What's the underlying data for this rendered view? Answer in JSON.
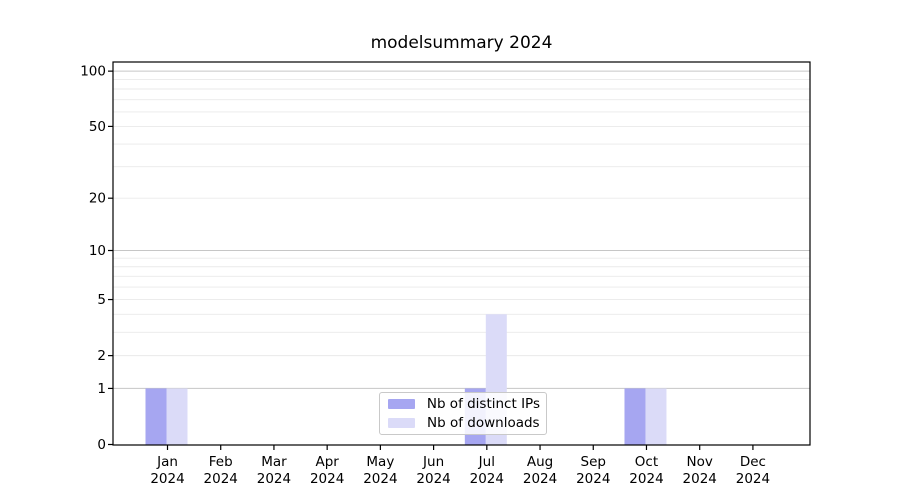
{
  "chart_data": {
    "type": "bar",
    "title": "modelsummary 2024",
    "months": [
      "Jan",
      "Feb",
      "Mar",
      "Apr",
      "May",
      "Jun",
      "Jul",
      "Aug",
      "Sep",
      "Oct",
      "Nov",
      "Dec"
    ],
    "year": "2024",
    "categories": [
      "Jan 2024",
      "Feb 2024",
      "Mar 2024",
      "Apr 2024",
      "May 2024",
      "Jun 2024",
      "Jul 2024",
      "Aug 2024",
      "Sep 2024",
      "Oct 2024",
      "Nov 2024",
      "Dec 2024"
    ],
    "series": [
      {
        "name": "Nb of distinct IPs",
        "color": "#a6a6f1",
        "values": [
          1,
          0,
          0,
          0,
          0,
          0,
          1,
          0,
          0,
          1,
          0,
          0
        ]
      },
      {
        "name": "Nb of downloads",
        "color": "#dbdbf8",
        "values": [
          1,
          0,
          0,
          0,
          0,
          0,
          4,
          0,
          0,
          1,
          0,
          0
        ]
      }
    ],
    "yscale": "log1p",
    "yticks": [
      0,
      1,
      2,
      5,
      10,
      20,
      50,
      100
    ],
    "ylim": [
      0,
      112
    ],
    "xlabel": "",
    "ylabel": "",
    "grid": "horizontal major+minor",
    "legend_position": "inside bottom-center",
    "colors": {
      "major_grid": "#c6c6c6",
      "minor_grid": "#eaeaea",
      "spine": "#000000"
    }
  }
}
